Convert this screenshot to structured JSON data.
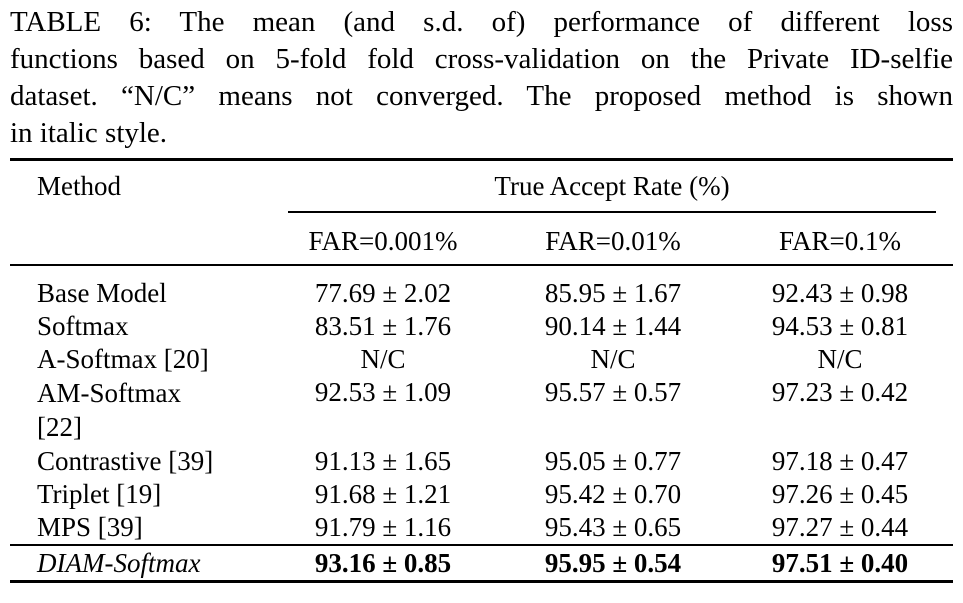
{
  "caption_lines": [
    "TABLE 6: The mean (and s.d. of) performance of different loss",
    "functions based on 5-fold fold cross-validation on the Private ID-selfie",
    "dataset. “N/C” means not converged. The proposed method is shown",
    "in italic style."
  ],
  "table": {
    "header": [
      "Method",
      "True Accept Rate (%)"
    ],
    "subheader": [
      "FAR=0.001%",
      "FAR=0.01%",
      "FAR=0.1%"
    ],
    "rows": [
      [
        "Base Model",
        "77.69 ± 2.02",
        "85.95 ± 1.67",
        "92.43 ± 0.98"
      ],
      [
        "Softmax",
        "83.51 ± 1.76",
        "90.14 ± 1.44",
        "94.53 ± 0.81"
      ],
      [
        "A-Softmax [20]",
        "N/C",
        "N/C",
        "N/C"
      ],
      [
        "AM-Softmax [22]",
        "92.53 ± 1.09",
        "95.57 ± 0.57",
        "97.23 ± 0.42"
      ],
      [
        "Contrastive [39]",
        "91.13 ± 1.65",
        "95.05 ± 0.77",
        "97.18 ± 0.47"
      ],
      [
        "Triplet [19]",
        "91.68 ± 1.21",
        "95.42 ± 0.70",
        "97.26 ± 0.45"
      ],
      [
        "MPS [39]",
        "91.79 ± 1.16",
        "95.43 ± 0.65",
        "97.27 ± 0.44"
      ],
      [
        "DIAM-Softmax",
        "93.16 ± 0.85",
        "95.95 ± 0.54",
        "97.51 ± 0.40"
      ]
    ]
  }
}
